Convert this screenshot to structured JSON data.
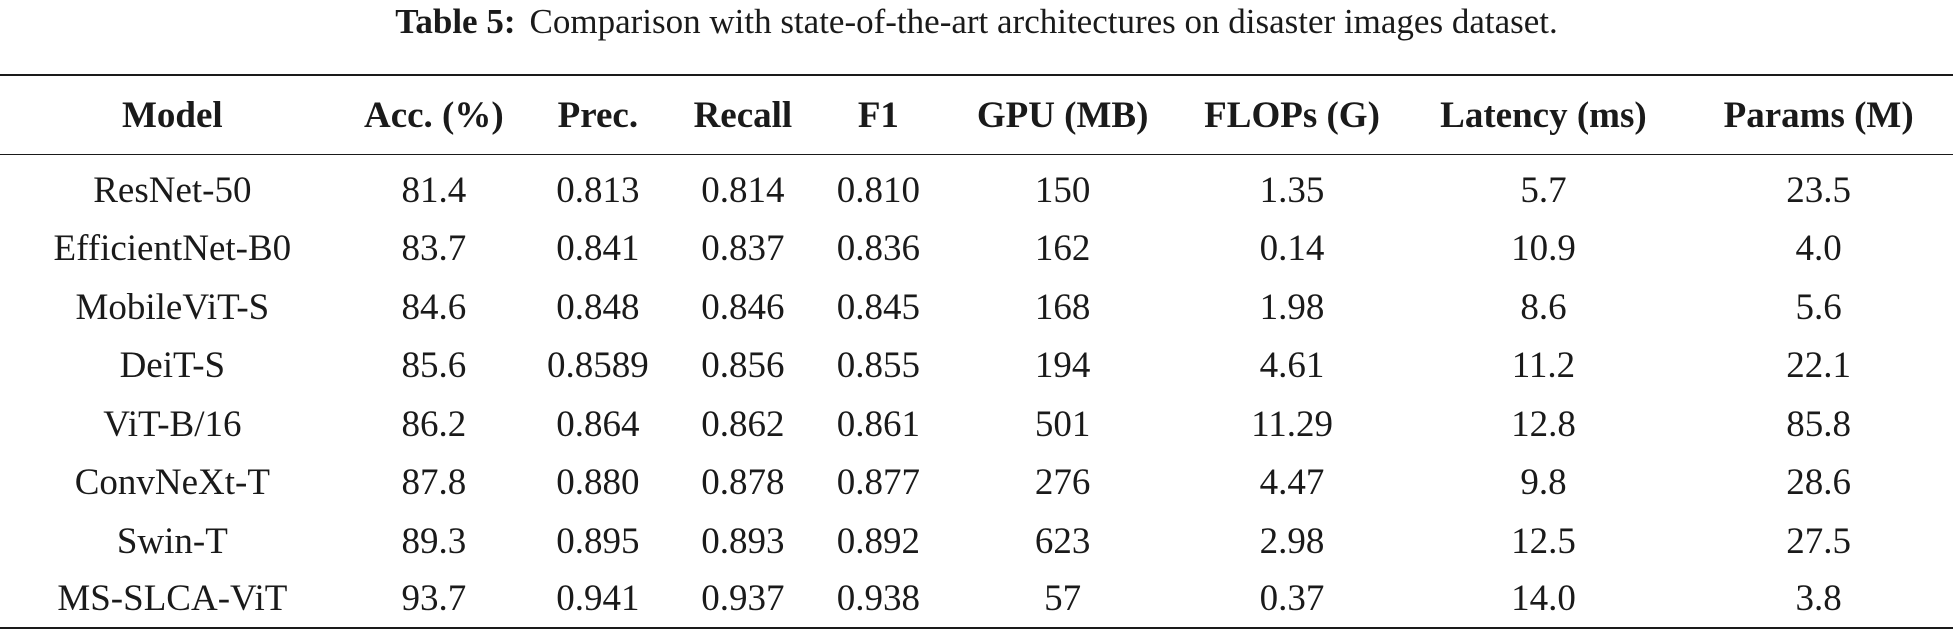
{
  "caption": {
    "label": "Table 5:",
    "text": "Comparison with state-of-the-art architectures on disaster images dataset."
  },
  "table": {
    "headers": [
      "Model",
      "Acc. (%)",
      "Prec.",
      "Recall",
      "F1",
      "GPU (MB)",
      "FLOPs (G)",
      "Latency (ms)",
      "Params (M)"
    ],
    "rows": [
      [
        "ResNet-50",
        "81.4",
        "0.813",
        "0.814",
        "0.810",
        "150",
        "1.35",
        "5.7",
        "23.5"
      ],
      [
        "EfficientNet-B0",
        "83.7",
        "0.841",
        "0.837",
        "0.836",
        "162",
        "0.14",
        "10.9",
        "4.0"
      ],
      [
        "MobileViT-S",
        "84.6",
        "0.848",
        "0.846",
        "0.845",
        "168",
        "1.98",
        "8.6",
        "5.6"
      ],
      [
        "DeiT-S",
        "85.6",
        "0.8589",
        "0.856",
        "0.855",
        "194",
        "4.61",
        "11.2",
        "22.1"
      ],
      [
        "ViT-B/16",
        "86.2",
        "0.864",
        "0.862",
        "0.861",
        "501",
        "11.29",
        "12.8",
        "85.8"
      ],
      [
        "ConvNeXt-T",
        "87.8",
        "0.880",
        "0.878",
        "0.877",
        "276",
        "4.47",
        "9.8",
        "28.6"
      ],
      [
        "Swin-T",
        "89.3",
        "0.895",
        "0.893",
        "0.892",
        "623",
        "2.98",
        "12.5",
        "27.5"
      ],
      [
        "MS-SLCA-ViT",
        "93.7",
        "0.941",
        "0.937",
        "0.938",
        "57",
        "0.37",
        "14.0",
        "3.8"
      ]
    ]
  }
}
